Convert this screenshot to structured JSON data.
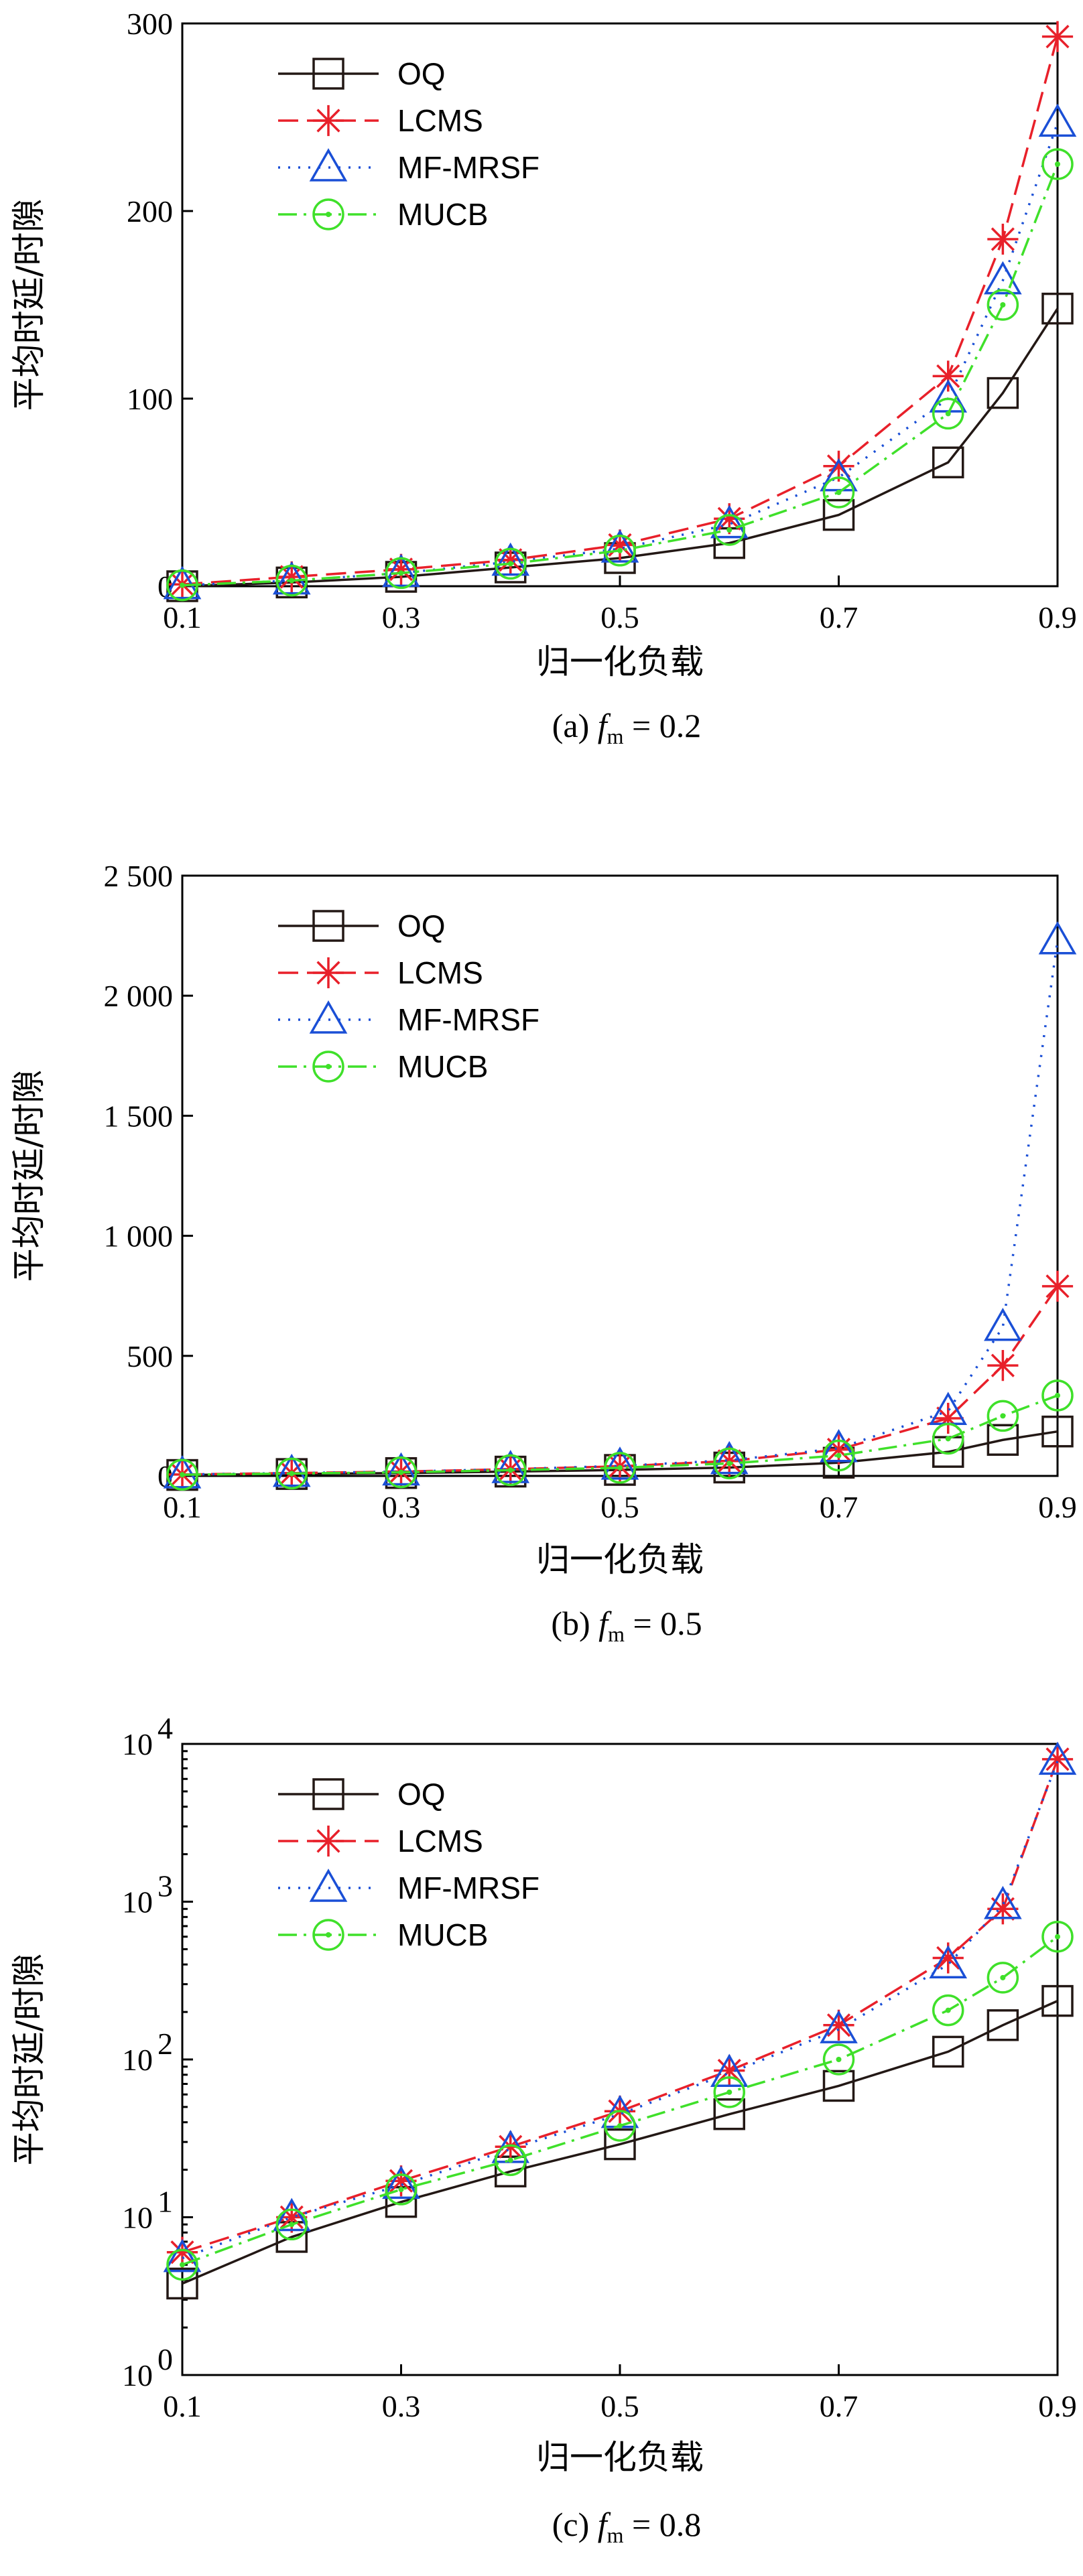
{
  "chart_data": [
    {
      "type": "line",
      "scale": "linear",
      "caption": {
        "prefix": "(a)",
        "var": "f",
        "sub": "m",
        "rest": " = 0.2"
      },
      "xlabel": "归一化负载",
      "ylabel": "平均时延/时隙",
      "xlim": [
        0.1,
        0.9
      ],
      "ylim": [
        0,
        300
      ],
      "xticks": [
        0.1,
        0.3,
        0.5,
        0.7,
        0.9
      ],
      "xtick_labels": [
        "0.1",
        "0.3",
        "0.5",
        "0.7",
        "0.9"
      ],
      "yticks": [
        0,
        100,
        200,
        300
      ],
      "ytick_labels": [
        "0",
        "100",
        "200",
        "300"
      ],
      "x": [
        0.1,
        0.2,
        0.3,
        0.4,
        0.5,
        0.6,
        0.7,
        0.8,
        0.85,
        0.9
      ],
      "series": [
        {
          "name": "OQ",
          "values": [
            0,
            2,
            5,
            10,
            15,
            23,
            38,
            66,
            103,
            148
          ]
        },
        {
          "name": "LCMS",
          "values": [
            1,
            5,
            9,
            14,
            22,
            36,
            64,
            112,
            185,
            293
          ]
        },
        {
          "name": "MF-MRSF",
          "values": [
            0.5,
            3,
            7,
            13,
            20,
            33,
            58,
            100,
            163,
            247
          ]
        },
        {
          "name": "MUCB",
          "values": [
            0.5,
            3,
            7,
            12,
            19,
            30,
            50,
            92,
            150,
            225
          ]
        }
      ]
    },
    {
      "type": "line",
      "scale": "linear",
      "caption": {
        "prefix": "(b)",
        "var": "f",
        "sub": "m",
        "rest": " = 0.5"
      },
      "xlabel": "归一化负载",
      "ylabel": "平均时延/时隙",
      "xlim": [
        0.1,
        0.9
      ],
      "ylim": [
        0,
        2500
      ],
      "xticks": [
        0.1,
        0.3,
        0.5,
        0.7,
        0.9
      ],
      "xtick_labels": [
        "0.1",
        "0.3",
        "0.5",
        "0.7",
        "0.9"
      ],
      "yticks": [
        0,
        500,
        1000,
        1500,
        2000,
        2500
      ],
      "ytick_labels": [
        "0",
        "500",
        "1 000",
        "1 500",
        "2 000",
        "2 500"
      ],
      "x": [
        0.1,
        0.2,
        0.3,
        0.4,
        0.5,
        0.6,
        0.7,
        0.8,
        0.85,
        0.9
      ],
      "series": [
        {
          "name": "OQ",
          "values": [
            4,
            8,
            12,
            18,
            25,
            35,
            55,
            100,
            150,
            185
          ]
        },
        {
          "name": "LCMS",
          "values": [
            6,
            12,
            18,
            28,
            40,
            62,
            110,
            240,
            460,
            790
          ]
        },
        {
          "name": "MF-MRSF",
          "values": [
            6,
            12,
            18,
            28,
            42,
            65,
            115,
            270,
            620,
            2230
          ]
        },
        {
          "name": "MUCB",
          "values": [
            5,
            10,
            15,
            24,
            34,
            52,
            85,
            155,
            250,
            335
          ]
        }
      ]
    },
    {
      "type": "line",
      "scale": "log",
      "caption": {
        "prefix": "(c)",
        "var": "f",
        "sub": "m",
        "rest": " = 0.8"
      },
      "xlabel": "归一化负载",
      "ylabel": "平均时延/时隙",
      "xlim": [
        0.1,
        0.9
      ],
      "ylim": [
        1,
        10000
      ],
      "xticks": [
        0.1,
        0.3,
        0.5,
        0.7,
        0.9
      ],
      "xtick_labels": [
        "0.1",
        "0.3",
        "0.5",
        "0.7",
        "0.9"
      ],
      "yticks": [
        1,
        10,
        100,
        1000,
        10000
      ],
      "ytick_exponents": [
        "0",
        "1",
        "2",
        "3",
        "4"
      ],
      "ytick_base": "10",
      "x": [
        0.1,
        0.2,
        0.3,
        0.4,
        0.5,
        0.6,
        0.7,
        0.8,
        0.85,
        0.9
      ],
      "series": [
        {
          "name": "OQ",
          "values": [
            3.8,
            7.5,
            12.5,
            19.5,
            29,
            45,
            68,
            112,
            165,
            235
          ]
        },
        {
          "name": "LCMS",
          "values": [
            6,
            10,
            17,
            28,
            47,
            85,
            165,
            440,
            900,
            8000
          ]
        },
        {
          "name": "MF-MRSF",
          "values": [
            5.5,
            10,
            16,
            27,
            45,
            82,
            155,
            400,
            950,
            7800
          ]
        },
        {
          "name": "MUCB",
          "values": [
            5,
            9,
            15,
            23,
            38,
            62,
            100,
            205,
            330,
            600
          ]
        }
      ]
    }
  ],
  "legend": [
    {
      "name": "OQ",
      "color": "#231815",
      "marker": "square",
      "dash": ""
    },
    {
      "name": "LCMS",
      "color": "#e8202a",
      "marker": "asterisk",
      "dash": "30 13"
    },
    {
      "name": "MF-MRSF",
      "color": "#1a4fd6",
      "marker": "triangle",
      "dash": "3 12"
    },
    {
      "name": "MUCB",
      "color": "#3fe02a",
      "marker": "circle",
      "dash": "28 10 4 10"
    }
  ]
}
